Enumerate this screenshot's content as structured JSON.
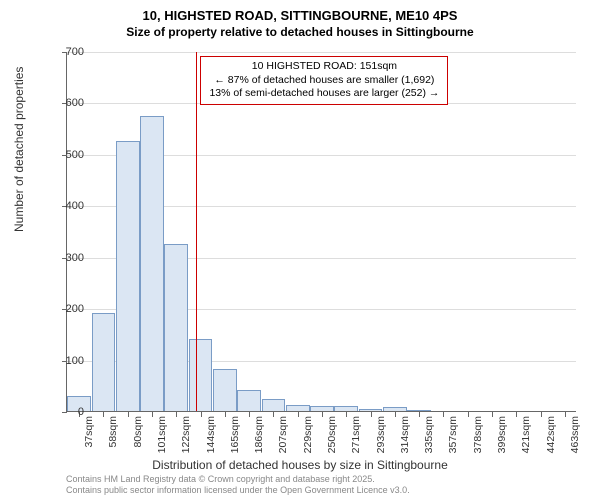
{
  "title": "10, HIGHSTED ROAD, SITTINGBOURNE, ME10 4PS",
  "subtitle": "Size of property relative to detached houses in Sittingbourne",
  "chart": {
    "type": "histogram",
    "y": {
      "label": "Number of detached properties",
      "lim": [
        0,
        700
      ],
      "ticks": [
        0,
        100,
        200,
        300,
        400,
        500,
        600,
        700
      ]
    },
    "x": {
      "label": "Distribution of detached houses by size in Sittingbourne",
      "tick_labels": [
        "37sqm",
        "58sqm",
        "80sqm",
        "101sqm",
        "122sqm",
        "144sqm",
        "165sqm",
        "186sqm",
        "207sqm",
        "229sqm",
        "250sqm",
        "271sqm",
        "293sqm",
        "314sqm",
        "335sqm",
        "357sqm",
        "378sqm",
        "399sqm",
        "421sqm",
        "442sqm",
        "463sqm"
      ]
    },
    "bars": {
      "values": [
        30,
        190,
        525,
        573,
        325,
        140,
        82,
        40,
        23,
        12,
        10,
        10,
        4,
        7,
        2,
        0,
        0,
        0,
        0,
        0,
        0
      ],
      "fill": "#dbe6f3",
      "stroke": "#7a9cc6",
      "width_frac": 0.98
    },
    "grid_color": "#dddddd",
    "marker": {
      "color": "#cc0000",
      "bin_index": 5,
      "position_in_bin": 0.33
    },
    "annotation": {
      "lines": [
        "10 HIGHSTED ROAD: 151sqm",
        "← 87% of detached houses are smaller (1,692)",
        "13% of semi-detached houses are larger (252) →"
      ],
      "border_color": "#cc0000"
    }
  },
  "footer": {
    "line1": "Contains HM Land Registry data © Crown copyright and database right 2025.",
    "line2": "Contains public sector information licensed under the Open Government Licence v3.0."
  }
}
